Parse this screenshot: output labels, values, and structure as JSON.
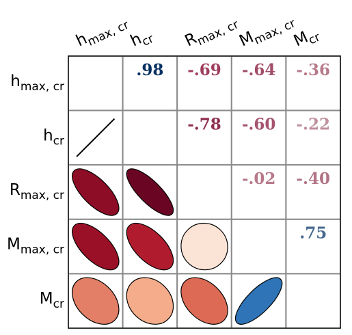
{
  "chart_data": {
    "type": "heatmap",
    "variables": [
      {
        "base": "h",
        "sub": "max, cr"
      },
      {
        "base": "h",
        "sub": "cr"
      },
      {
        "base": "R",
        "sub": "max, cr"
      },
      {
        "base": "M",
        "sub": "max, cr"
      },
      {
        "base": "M",
        "sub": "cr"
      }
    ],
    "upper_triangle_labels": [
      {
        "row": 0,
        "col": 1,
        "text": ".98",
        "color": "#053061"
      },
      {
        "row": 0,
        "col": 2,
        "text": "-.69",
        "color": "#9e3d5c"
      },
      {
        "row": 0,
        "col": 3,
        "text": "-.64",
        "color": "#a24d68"
      },
      {
        "row": 0,
        "col": 4,
        "text": "-.36",
        "color": "#b77a8a"
      },
      {
        "row": 1,
        "col": 2,
        "text": "-.78",
        "color": "#8f2f4d"
      },
      {
        "row": 1,
        "col": 3,
        "text": "-.60",
        "color": "#a5546e"
      },
      {
        "row": 1,
        "col": 4,
        "text": "-.22",
        "color": "#c0909c"
      },
      {
        "row": 2,
        "col": 3,
        "text": "-.02",
        "color": "#b7798a"
      },
      {
        "row": 2,
        "col": 4,
        "text": "-.40",
        "color": "#b27384"
      },
      {
        "row": 3,
        "col": 4,
        "text": ".75",
        "color": "#47688f"
      }
    ],
    "lower_triangle_ellipses": [
      {
        "row": 1,
        "col": 0,
        "r": 0.98,
        "fill": "#053061"
      },
      {
        "row": 2,
        "col": 0,
        "r": -0.69,
        "fill": "#8c0d25"
      },
      {
        "row": 2,
        "col": 1,
        "r": -0.78,
        "fill": "#6a0624"
      },
      {
        "row": 3,
        "col": 0,
        "r": -0.64,
        "fill": "#9a1127"
      },
      {
        "row": 3,
        "col": 1,
        "r": -0.6,
        "fill": "#b01c2e"
      },
      {
        "row": 3,
        "col": 2,
        "r": -0.02,
        "fill": "#fbe3d6"
      },
      {
        "row": 4,
        "col": 0,
        "r": -0.36,
        "fill": "#e27f66"
      },
      {
        "row": 4,
        "col": 1,
        "r": -0.22,
        "fill": "#f4ac8b"
      },
      {
        "row": 4,
        "col": 2,
        "r": -0.4,
        "fill": "#dd6a55"
      },
      {
        "row": 4,
        "col": 3,
        "r": 0.75,
        "fill": "#2f74b6"
      }
    ],
    "grid": true,
    "diagonal": "empty"
  }
}
